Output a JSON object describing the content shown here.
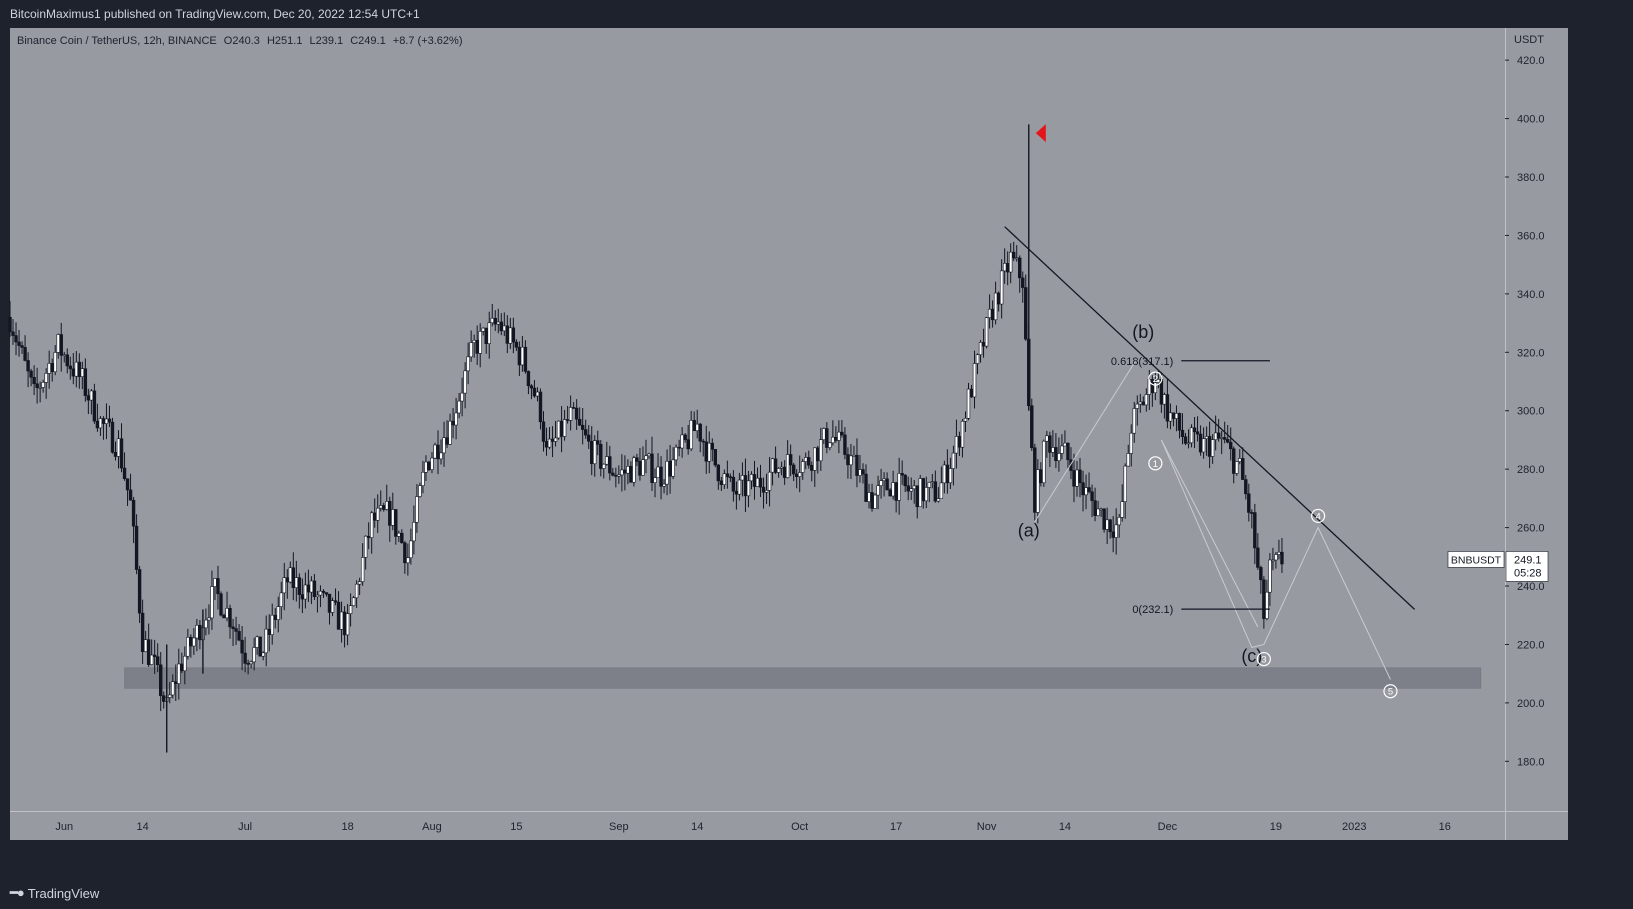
{
  "header": {
    "published": "BitcoinMaximus1 published on TradingView.com, Dec 20, 2022 12:54 UTC+1"
  },
  "footer": {
    "brand": "TradingView"
  },
  "colors": {
    "background": "#979aa1",
    "frame": "#1e222d",
    "candle": "#131722",
    "support_zone": "#7d8088",
    "marker": "#e3151a",
    "wave_lines": "#c9cbd0"
  },
  "chart_data": {
    "type": "candlestick",
    "symbol_info": {
      "name": "Binance Coin / TetherUS, 12h, BINANCE",
      "o_label": "O",
      "o_value": "240.3",
      "h_label": "H",
      "h_value": "251.1",
      "l_label": "L",
      "l_value": "239.1",
      "c_label": "C",
      "c_value": "249.1",
      "change": "+8.7 (+3.62%)"
    },
    "currency_label": "USDT",
    "ylim": [
      163,
      431
    ],
    "yticks": [
      "420.0",
      "400.0",
      "380.0",
      "360.0",
      "340.0",
      "320.0",
      "300.0",
      "280.0",
      "260.0",
      "240.0",
      "220.0",
      "200.0",
      "180.0"
    ],
    "x_range": [
      "2022-05-23",
      "2023-01-26"
    ],
    "xticks": [
      {
        "label": "Jun",
        "date": "2022-06-01"
      },
      {
        "label": "14",
        "date": "2022-06-14"
      },
      {
        "label": "Jul",
        "date": "2022-07-01"
      },
      {
        "label": "18",
        "date": "2022-07-18"
      },
      {
        "label": "Aug",
        "date": "2022-08-01"
      },
      {
        "label": "15",
        "date": "2022-08-15"
      },
      {
        "label": "Sep",
        "date": "2022-09-01"
      },
      {
        "label": "14",
        "date": "2022-09-14"
      },
      {
        "label": "Oct",
        "date": "2022-10-01"
      },
      {
        "label": "17",
        "date": "2022-10-17"
      },
      {
        "label": "Nov",
        "date": "2022-11-01"
      },
      {
        "label": "14",
        "date": "2022-11-14"
      },
      {
        "label": "Dec",
        "date": "2022-12-01"
      },
      {
        "label": "19",
        "date": "2022-12-19"
      },
      {
        "label": "2023",
        "date": "2023-01-01"
      },
      {
        "label": "16",
        "date": "2023-01-16"
      }
    ],
    "price_path": [
      [
        "2022-05-23",
        332
      ],
      [
        "2022-05-27",
        305
      ],
      [
        "2022-05-31",
        322
      ],
      [
        "2022-06-04",
        310
      ],
      [
        "2022-06-07",
        296
      ],
      [
        "2022-06-10",
        288
      ],
      [
        "2022-06-12",
        268
      ],
      [
        "2022-06-14",
        222
      ],
      [
        "2022-06-16",
        212
      ],
      [
        "2022-06-18",
        198
      ],
      [
        "2022-06-20",
        212
      ],
      [
        "2022-06-23",
        224
      ],
      [
        "2022-06-26",
        238
      ],
      [
        "2022-06-29",
        228
      ],
      [
        "2022-07-01",
        217
      ],
      [
        "2022-07-04",
        218
      ],
      [
        "2022-07-08",
        242
      ],
      [
        "2022-07-12",
        238
      ],
      [
        "2022-07-15",
        232
      ],
      [
        "2022-07-18",
        226
      ],
      [
        "2022-07-22",
        262
      ],
      [
        "2022-07-25",
        265
      ],
      [
        "2022-07-28",
        250
      ],
      [
        "2022-07-31",
        282
      ],
      [
        "2022-08-04",
        295
      ],
      [
        "2022-08-08",
        322
      ],
      [
        "2022-08-12",
        330
      ],
      [
        "2022-08-16",
        318
      ],
      [
        "2022-08-19",
        300
      ],
      [
        "2022-08-20",
        285
      ],
      [
        "2022-08-24",
        298
      ],
      [
        "2022-08-28",
        285
      ],
      [
        "2022-09-01",
        278
      ],
      [
        "2022-09-05",
        282
      ],
      [
        "2022-09-08",
        278
      ],
      [
        "2022-09-10",
        282
      ],
      [
        "2022-09-14",
        295
      ],
      [
        "2022-09-16",
        285
      ],
      [
        "2022-09-20",
        272
      ],
      [
        "2022-09-24",
        275
      ],
      [
        "2022-09-28",
        282
      ],
      [
        "2022-10-02",
        282
      ],
      [
        "2022-10-06",
        292
      ],
      [
        "2022-10-09",
        285
      ],
      [
        "2022-10-13",
        270
      ],
      [
        "2022-10-16",
        275
      ],
      [
        "2022-10-20",
        272
      ],
      [
        "2022-10-24",
        272
      ],
      [
        "2022-10-27",
        288
      ],
      [
        "2022-10-30",
        312
      ],
      [
        "2022-11-02",
        335
      ],
      [
        "2022-11-05",
        352
      ],
      [
        "2022-11-07",
        345
      ],
      [
        "2022-11-08",
        300
      ],
      [
        "2022-11-09",
        270
      ],
      [
        "2022-11-11",
        290
      ],
      [
        "2022-11-14",
        285
      ],
      [
        "2022-11-17",
        273
      ],
      [
        "2022-11-21",
        262
      ],
      [
        "2022-11-23",
        260
      ],
      [
        "2022-11-25",
        295
      ],
      [
        "2022-11-29",
        312
      ],
      [
        "2022-12-01",
        300
      ],
      [
        "2022-12-04",
        290
      ],
      [
        "2022-12-07",
        288
      ],
      [
        "2022-12-10",
        290
      ],
      [
        "2022-12-13",
        280
      ],
      [
        "2022-12-15",
        262
      ],
      [
        "2022-12-16",
        245
      ],
      [
        "2022-12-17",
        230
      ],
      [
        "2022-12-18",
        245
      ],
      [
        "2022-12-20",
        249
      ]
    ],
    "spikes": [
      {
        "date": "2022-11-08",
        "low": 300,
        "high": 398
      },
      {
        "date": "2022-06-18",
        "low": 183,
        "high": 220
      },
      {
        "date": "2022-06-24",
        "low": 210,
        "high": 232
      }
    ],
    "last_price": {
      "symbol": "BNBUSDT",
      "price": "249.1",
      "countdown": "05:28",
      "value": 249.1
    },
    "support_zone": {
      "low": 205,
      "high": 212,
      "from": "2022-06-11",
      "to": "2023-01-22"
    },
    "trendline": {
      "from": {
        "date": "2022-11-04",
        "price": 363
      },
      "to": {
        "date": "2023-01-11",
        "price": 232
      }
    },
    "fib_levels": [
      {
        "label": "0.618(317.1)",
        "price": 317.1,
        "from": "2022-11-27",
        "to": "2022-12-18"
      },
      {
        "label": "0(232.1)",
        "price": 232.1,
        "from": "2022-11-27",
        "to": "2022-12-18"
      }
    ],
    "wave_labels": [
      {
        "text": "(a)",
        "date": "2022-11-08",
        "price": 259
      },
      {
        "text": "(b)",
        "date": "2022-11-27",
        "price": 327
      },
      {
        "text": "(c)",
        "date": "2022-12-15",
        "price": 216
      }
    ],
    "wave_counts": [
      {
        "text": "1",
        "date": "2022-11-29",
        "price": 282
      },
      {
        "text": "2",
        "date": "2022-11-29",
        "price": 311
      },
      {
        "text": "3",
        "date": "2022-12-17",
        "price": 215
      },
      {
        "text": "4",
        "date": "2022-12-26",
        "price": 264
      },
      {
        "text": "5",
        "date": "2023-01-07",
        "price": 204
      }
    ],
    "wave_paths": [
      [
        [
          "2022-11-09",
          262
        ],
        [
          "2022-11-26",
          318
        ]
      ],
      [
        [
          "2022-11-30",
          290
        ],
        [
          "2022-12-15",
          219
        ],
        [
          "2022-12-17",
          220
        ],
        [
          "2022-12-26",
          260
        ],
        [
          "2023-01-07",
          208
        ]
      ],
      [
        [
          "2022-11-30",
          290
        ],
        [
          "2022-12-16",
          226
        ]
      ]
    ],
    "marker": {
      "date": "2022-11-10",
      "price": 395
    }
  }
}
